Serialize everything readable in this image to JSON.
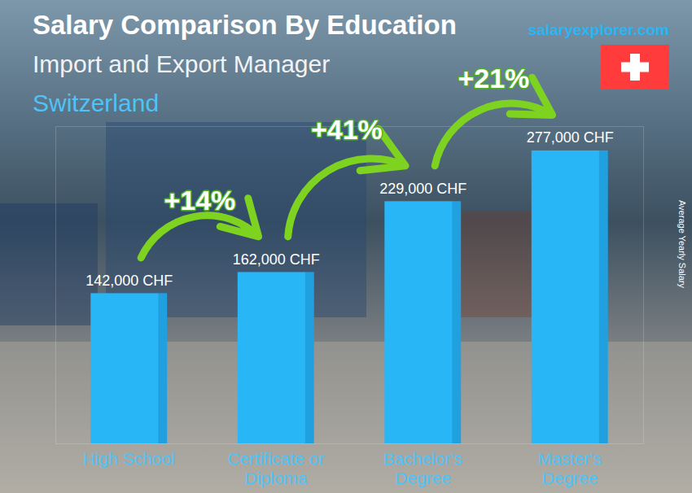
{
  "chart_data": {
    "type": "bar",
    "title": "Salary Comparison By Education",
    "subtitle": "Import and Export Manager",
    "region": "Switzerland",
    "source": "salaryexplorer.com",
    "y_label": "Average Yearly Salary",
    "categories": [
      "High School",
      "Certificate or\nDiploma",
      "Bachelor's\nDegree",
      "Master's\nDegree"
    ],
    "values": [
      142000,
      162000,
      229000,
      277000
    ],
    "value_labels": [
      "142,000 CHF",
      "162,000 CHF",
      "229,000 CHF",
      "277,000 CHF"
    ],
    "data_labels": true,
    "color": "#29b6f6",
    "ylim": [
      0,
      300000
    ],
    "yticks": [],
    "tick_labels": "x",
    "grid": false,
    "annotations": [
      "+14%",
      "+41%",
      "+21%"
    ]
  }
}
